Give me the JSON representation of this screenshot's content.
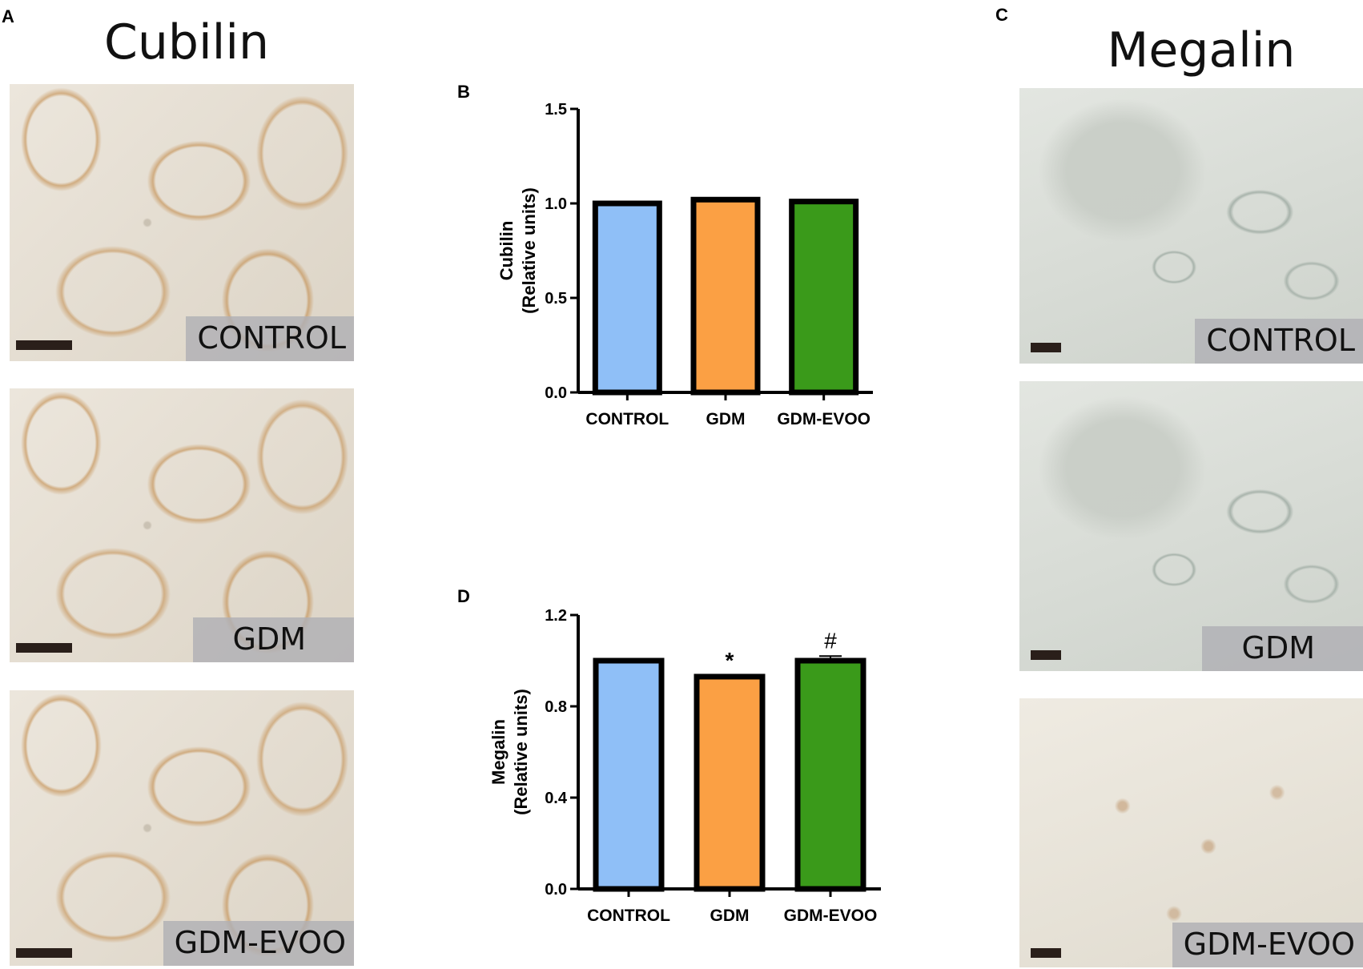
{
  "panels": {
    "a_letter": "A",
    "b_letter": "B",
    "c_letter": "C",
    "d_letter": "D"
  },
  "left_column": {
    "title": "Cubilin",
    "images": [
      {
        "label": "CONTROL"
      },
      {
        "label": "GDM"
      },
      {
        "label": "GDM-EVOO"
      }
    ]
  },
  "right_column": {
    "title": "Megalin",
    "images": [
      {
        "label": "CONTROL"
      },
      {
        "label": "GDM"
      },
      {
        "label": "GDM-EVOO"
      }
    ]
  },
  "colors": {
    "control": "#8fbff7",
    "gdm": "#fba044",
    "gdm_evoo": "#3a9a1a"
  },
  "chart_data": [
    {
      "type": "bar",
      "panel": "B",
      "categories": [
        "CONTROL",
        "GDM",
        "GDM-EVOO"
      ],
      "values": [
        1.0,
        1.02,
        1.01
      ],
      "errors": [
        0.0,
        0.005,
        0.005
      ],
      "ylabel_line1": "Cubilin",
      "ylabel_line2": "(Relative units)",
      "ylim": [
        0,
        1.5
      ],
      "yticks": [
        "0.0",
        "0.5",
        "1.0",
        "1.5"
      ],
      "annotations": [
        "",
        "",
        ""
      ]
    },
    {
      "type": "bar",
      "panel": "D",
      "categories": [
        "CONTROL",
        "GDM",
        "GDM-EVOO"
      ],
      "values": [
        1.0,
        0.93,
        1.0
      ],
      "errors": [
        0.005,
        0.003,
        0.02
      ],
      "ylabel_line1": "Megalin",
      "ylabel_line2": "(Relative units)",
      "ylim": [
        0,
        1.2
      ],
      "yticks": [
        "0.0",
        "0.4",
        "0.8",
        "1.2"
      ],
      "annotations": [
        "",
        "*",
        "#"
      ]
    }
  ]
}
